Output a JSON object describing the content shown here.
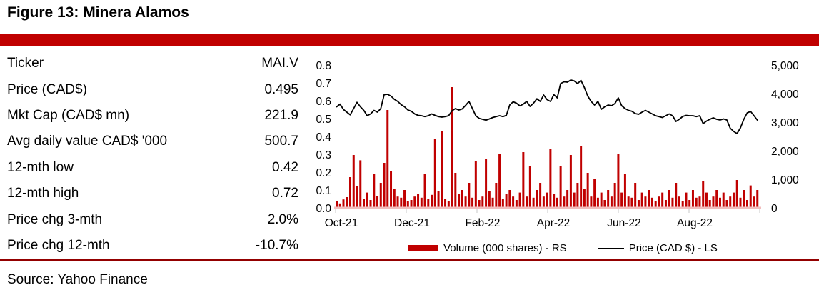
{
  "figure": {
    "title": "Figure 13: Minera Alamos",
    "source": "Source: Yahoo Finance"
  },
  "colors": {
    "banner_red": "#C00000",
    "bar_red": "#C00000",
    "separator_red": "#930000",
    "price_line": "#000000",
    "baseline_pink": "#f2bdbd",
    "tick_gray": "#c9c9c9"
  },
  "table": {
    "rows": [
      {
        "label": "Ticker",
        "value": "MAI.V"
      },
      {
        "label": "Price (CAD$)",
        "value": "0.495"
      },
      {
        "label": "Mkt Cap (CAD$ mn)",
        "value": "221.9"
      },
      {
        "label": "Avg daily value CAD$ '000",
        "value": "500.7"
      },
      {
        "label": "12-mth low",
        "value": "0.42"
      },
      {
        "label": "12-mth high",
        "value": "0.72"
      },
      {
        "label": "Price chg 3-mth",
        "value": "2.0%"
      },
      {
        "label": "Price chg 12-mth",
        "value": "-10.7%"
      }
    ]
  },
  "chart_data": {
    "type": "combo bar+line",
    "title": "",
    "left_axis": {
      "min": 0.0,
      "max": 0.8,
      "ticks": [
        "0.0",
        "0.1",
        "0.2",
        "0.3",
        "0.4",
        "0.5",
        "0.6",
        "0.7",
        "0.8"
      ]
    },
    "right_axis": {
      "min": 0,
      "max": 5000,
      "ticks": [
        "0",
        "1,000",
        "2,000",
        "3,000",
        "4,000",
        "5,000"
      ]
    },
    "x_axis": {
      "labels": [
        "Oct-21",
        "Dec-21",
        "Feb-22",
        "Apr-22",
        "Jun-22",
        "Aug-22"
      ],
      "month_positions": [
        0,
        2,
        4,
        6,
        8,
        10
      ],
      "total_months": 12
    },
    "legend": [
      {
        "label": "Volume (000 shares) - RS",
        "color": "#C00000",
        "type": "bar"
      },
      {
        "label": "Price (CAD $) - LS",
        "color": "#000000",
        "type": "line"
      }
    ],
    "series": [
      {
        "name": "Volume (000 shares)",
        "axis": "right",
        "type": "bar",
        "values": [
          250,
          180,
          320,
          400,
          1100,
          1875,
          800,
          1690,
          350,
          560,
          300,
          1200,
          450,
          900,
          1600,
          3450,
          1300,
          700,
          420,
          380,
          650,
          250,
          300,
          420,
          520,
          380,
          1200,
          350,
          480,
          2425,
          600,
          2725,
          350,
          250,
          4250,
          1250,
          500,
          650,
          420,
          900,
          380,
          1650,
          300,
          420,
          1750,
          600,
          380,
          900,
          1925,
          350,
          500,
          650,
          420,
          300,
          560,
          1975,
          420,
          1500,
          380,
          650,
          900,
          420,
          560,
          2100,
          500,
          380,
          1500,
          420,
          650,
          1875,
          560,
          900,
          2200,
          700,
          1250,
          420,
          1050,
          380,
          560,
          300,
          650,
          420,
          900,
          1900,
          560,
          1225,
          420,
          380,
          900,
          300,
          560,
          420,
          650,
          380,
          250,
          420,
          560,
          300,
          650,
          380,
          900,
          420,
          250,
          560,
          300,
          650,
          380,
          420,
          950,
          560,
          300,
          420,
          650,
          380,
          560,
          300,
          420,
          560,
          1000,
          380,
          650,
          300,
          810,
          420,
          650
        ]
      },
      {
        "name": "Price (CAD $)",
        "axis": "left",
        "type": "line",
        "values": [
          0.57,
          0.585,
          0.555,
          0.54,
          0.525,
          0.56,
          0.595,
          0.57,
          0.55,
          0.52,
          0.53,
          0.55,
          0.54,
          0.56,
          0.638,
          0.64,
          0.63,
          0.612,
          0.6,
          0.582,
          0.57,
          0.552,
          0.545,
          0.53,
          0.522,
          0.52,
          0.515,
          0.52,
          0.53,
          0.522,
          0.515,
          0.512,
          0.515,
          0.52,
          0.548,
          0.56,
          0.552,
          0.558,
          0.578,
          0.6,
          0.56,
          0.52,
          0.505,
          0.5,
          0.495,
          0.502,
          0.51,
          0.515,
          0.52,
          0.515,
          0.522,
          0.58,
          0.598,
          0.59,
          0.575,
          0.585,
          0.6,
          0.572,
          0.59,
          0.615,
          0.6,
          0.636,
          0.61,
          0.6,
          0.638,
          0.62,
          0.7,
          0.71,
          0.708,
          0.72,
          0.715,
          0.7,
          0.718,
          0.678,
          0.63,
          0.6,
          0.58,
          0.6,
          0.556,
          0.57,
          0.58,
          0.576,
          0.588,
          0.62,
          0.576,
          0.56,
          0.55,
          0.545,
          0.532,
          0.528,
          0.54,
          0.55,
          0.54,
          0.53,
          0.52,
          0.515,
          0.51,
          0.52,
          0.53,
          0.52,
          0.488,
          0.5,
          0.516,
          0.522,
          0.52,
          0.52,
          0.515,
          0.52,
          0.476,
          0.49,
          0.5,
          0.508,
          0.5,
          0.496,
          0.502,
          0.496,
          0.45,
          0.432,
          0.42,
          0.452,
          0.5,
          0.536,
          0.544,
          0.52,
          0.495
        ]
      }
    ]
  }
}
